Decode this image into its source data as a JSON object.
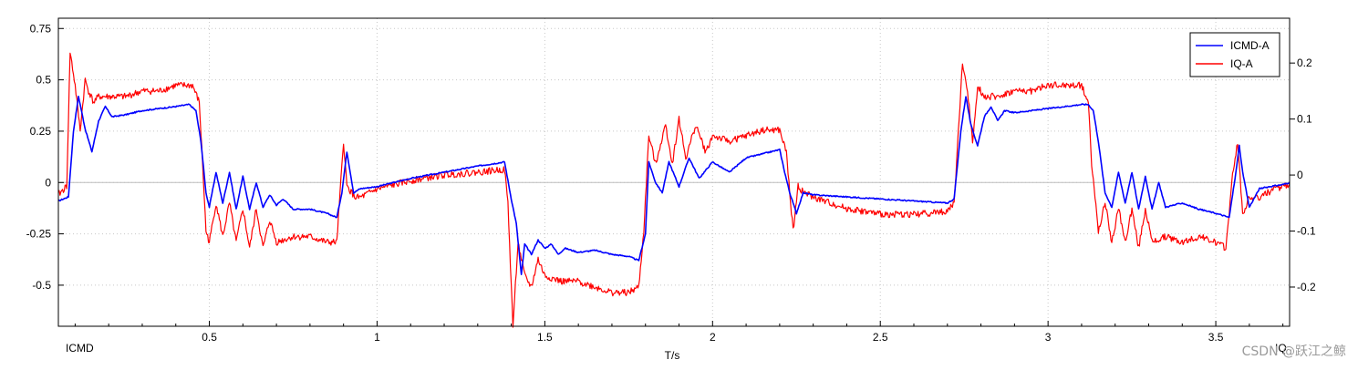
{
  "chart_data": {
    "type": "line",
    "xlabel": "T/s",
    "left_axis_label": "ICMD",
    "right_axis_label": "IQ",
    "xlim": [
      0.05,
      3.72
    ],
    "ylim_left": [
      -0.7,
      0.8
    ],
    "ylim_right": [
      -0.27,
      0.28
    ],
    "x_ticks": [
      0.5,
      1,
      1.5,
      2,
      2.5,
      3,
      3.5
    ],
    "y_ticks_left": [
      -0.5,
      -0.25,
      0,
      0.25,
      0.5,
      0.75
    ],
    "y_ticks_right": [
      -0.2,
      -0.1,
      0,
      0.1,
      0.2
    ],
    "grid": true,
    "legend": "top-right",
    "series": [
      {
        "name": "ICMD-A",
        "color": "#0000ff",
        "x": [
          0.05,
          0.08,
          0.095,
          0.11,
          0.13,
          0.15,
          0.17,
          0.19,
          0.21,
          0.25,
          0.3,
          0.35,
          0.4,
          0.44,
          0.46,
          0.475,
          0.49,
          0.5,
          0.52,
          0.54,
          0.56,
          0.58,
          0.6,
          0.62,
          0.64,
          0.66,
          0.68,
          0.7,
          0.72,
          0.75,
          0.8,
          0.85,
          0.88,
          0.895,
          0.91,
          0.93,
          0.95,
          1.0,
          1.1,
          1.2,
          1.3,
          1.38,
          1.4,
          1.415,
          1.43,
          1.44,
          1.46,
          1.48,
          1.5,
          1.52,
          1.54,
          1.56,
          1.6,
          1.65,
          1.7,
          1.75,
          1.78,
          1.8,
          1.81,
          1.83,
          1.85,
          1.87,
          1.9,
          1.93,
          1.96,
          2.0,
          2.05,
          2.1,
          2.15,
          2.2,
          2.215,
          2.23,
          2.25,
          2.27,
          2.3,
          2.4,
          2.5,
          2.6,
          2.7,
          2.72,
          2.74,
          2.755,
          2.77,
          2.79,
          2.81,
          2.83,
          2.85,
          2.87,
          2.9,
          2.95,
          3.0,
          3.05,
          3.1,
          3.12,
          3.135,
          3.15,
          3.17,
          3.19,
          3.21,
          3.23,
          3.25,
          3.27,
          3.29,
          3.31,
          3.33,
          3.35,
          3.4,
          3.45,
          3.5,
          3.54,
          3.56,
          3.57,
          3.58,
          3.6,
          3.63,
          3.66,
          3.7,
          3.72
        ],
        "y": [
          -0.09,
          -0.07,
          0.25,
          0.42,
          0.26,
          0.15,
          0.3,
          0.37,
          0.32,
          0.33,
          0.35,
          0.36,
          0.37,
          0.38,
          0.35,
          0.2,
          -0.05,
          -0.12,
          0.05,
          -0.1,
          0.05,
          -0.13,
          0.03,
          -0.13,
          0.0,
          -0.12,
          -0.06,
          -0.11,
          -0.08,
          -0.13,
          -0.13,
          -0.15,
          -0.17,
          -0.05,
          0.15,
          -0.05,
          -0.03,
          -0.02,
          0.02,
          0.05,
          0.08,
          0.1,
          -0.08,
          -0.2,
          -0.45,
          -0.3,
          -0.35,
          -0.28,
          -0.32,
          -0.3,
          -0.35,
          -0.32,
          -0.34,
          -0.33,
          -0.35,
          -0.36,
          -0.38,
          -0.25,
          0.1,
          0.0,
          -0.05,
          0.1,
          -0.02,
          0.12,
          0.02,
          0.1,
          0.05,
          0.12,
          0.14,
          0.16,
          0.05,
          -0.05,
          -0.15,
          -0.05,
          -0.06,
          -0.07,
          -0.08,
          -0.09,
          -0.1,
          -0.08,
          0.25,
          0.42,
          0.28,
          0.18,
          0.32,
          0.37,
          0.3,
          0.35,
          0.34,
          0.35,
          0.36,
          0.37,
          0.38,
          0.38,
          0.35,
          0.2,
          -0.05,
          -0.12,
          0.05,
          -0.1,
          0.05,
          -0.13,
          0.03,
          -0.13,
          0.0,
          -0.12,
          -0.1,
          -0.13,
          -0.15,
          -0.17,
          0.05,
          0.18,
          0.05,
          -0.12,
          -0.03,
          -0.02,
          -0.01,
          0.0
        ]
      },
      {
        "name": "IQ-A",
        "color": "#ff0000",
        "x": [
          0.05,
          0.075,
          0.085,
          0.1,
          0.115,
          0.13,
          0.14,
          0.155,
          0.17,
          0.2,
          0.25,
          0.3,
          0.35,
          0.4,
          0.45,
          0.47,
          0.48,
          0.49,
          0.5,
          0.52,
          0.54,
          0.56,
          0.58,
          0.6,
          0.62,
          0.64,
          0.66,
          0.68,
          0.7,
          0.75,
          0.8,
          0.85,
          0.88,
          0.9,
          0.91,
          0.935,
          0.95,
          1.0,
          1.1,
          1.2,
          1.3,
          1.38,
          1.39,
          1.405,
          1.42,
          1.44,
          1.46,
          1.48,
          1.5,
          1.55,
          1.6,
          1.65,
          1.7,
          1.75,
          1.78,
          1.795,
          1.81,
          1.83,
          1.86,
          1.88,
          1.9,
          1.92,
          1.95,
          1.98,
          2.0,
          2.05,
          2.1,
          2.15,
          2.2,
          2.22,
          2.24,
          2.255,
          2.27,
          2.3,
          2.4,
          2.5,
          2.6,
          2.7,
          2.72,
          2.745,
          2.76,
          2.775,
          2.79,
          2.81,
          2.85,
          2.9,
          2.95,
          3.0,
          3.05,
          3.1,
          3.12,
          3.13,
          3.15,
          3.17,
          3.19,
          3.21,
          3.23,
          3.25,
          3.27,
          3.29,
          3.31,
          3.35,
          3.4,
          3.45,
          3.5,
          3.53,
          3.55,
          3.565,
          3.58,
          3.6,
          3.63,
          3.66,
          3.7,
          3.72
        ],
        "y": [
          -0.035,
          -0.02,
          0.22,
          0.16,
          0.08,
          0.17,
          0.15,
          0.13,
          0.14,
          0.14,
          0.14,
          0.15,
          0.15,
          0.16,
          0.16,
          0.13,
          0.02,
          -0.1,
          -0.12,
          -0.05,
          -0.11,
          -0.05,
          -0.12,
          -0.06,
          -0.13,
          -0.06,
          -0.13,
          -0.08,
          -0.12,
          -0.11,
          -0.11,
          -0.12,
          -0.12,
          0.06,
          -0.02,
          -0.04,
          -0.04,
          -0.025,
          -0.01,
          0.0,
          0.005,
          0.01,
          -0.05,
          -0.27,
          -0.12,
          -0.18,
          -0.2,
          -0.15,
          -0.18,
          -0.19,
          -0.19,
          -0.2,
          -0.21,
          -0.21,
          -0.2,
          -0.1,
          0.07,
          0.02,
          0.09,
          0.02,
          0.1,
          0.03,
          0.09,
          0.04,
          0.07,
          0.06,
          0.07,
          0.08,
          0.08,
          0.04,
          -0.1,
          -0.02,
          -0.03,
          -0.04,
          -0.06,
          -0.07,
          -0.07,
          -0.065,
          -0.05,
          0.2,
          0.15,
          0.06,
          0.16,
          0.14,
          0.14,
          0.15,
          0.15,
          0.16,
          0.16,
          0.16,
          0.13,
          0.02,
          -0.1,
          -0.05,
          -0.12,
          -0.06,
          -0.12,
          -0.06,
          -0.13,
          -0.06,
          -0.12,
          -0.11,
          -0.12,
          -0.11,
          -0.12,
          -0.13,
          0.0,
          0.06,
          -0.07,
          -0.04,
          -0.04,
          -0.03,
          -0.02,
          -0.02
        ]
      }
    ]
  },
  "watermark": "CSDN @跃江之鲸"
}
